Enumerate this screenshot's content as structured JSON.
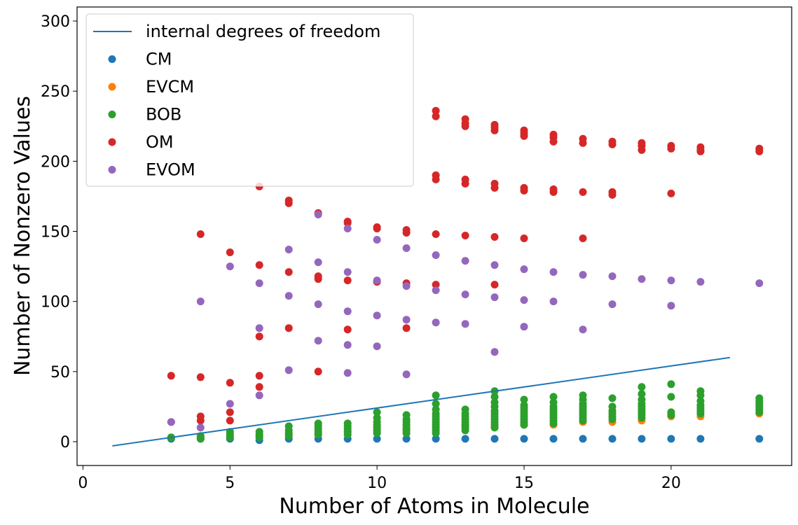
{
  "chart_data": {
    "type": "scatter",
    "xlabel": "Number of Atoms in Molecule",
    "ylabel": "Number of Nonzero Values",
    "xlim": [
      -0.2,
      24.1
    ],
    "ylim": [
      -17,
      310
    ],
    "xticks": [
      0,
      5,
      10,
      15,
      20
    ],
    "yticks": [
      0,
      50,
      100,
      150,
      200,
      250,
      300
    ],
    "grid": false,
    "legend": "top-left",
    "line": {
      "name": "internal degrees of freedom",
      "color": "#1f77b4",
      "x": [
        1,
        22
      ],
      "y": [
        -3,
        60
      ]
    },
    "series": [
      {
        "name": "CM",
        "color": "#1f77b4",
        "points": [
          [
            3,
            2
          ],
          [
            4,
            2
          ],
          [
            5,
            2
          ],
          [
            6,
            1
          ],
          [
            7,
            2
          ],
          [
            8,
            2
          ],
          [
            9,
            2
          ],
          [
            10,
            2
          ],
          [
            11,
            2
          ],
          [
            12,
            2
          ],
          [
            13,
            2
          ],
          [
            14,
            2
          ],
          [
            15,
            2
          ],
          [
            16,
            2
          ],
          [
            17,
            2
          ],
          [
            18,
            2
          ],
          [
            19,
            2
          ],
          [
            20,
            2
          ],
          [
            21,
            2
          ],
          [
            23,
            2
          ]
        ]
      },
      {
        "name": "EVCM",
        "color": "#ff7f0e",
        "points": [
          [
            3,
            3
          ],
          [
            4,
            3
          ],
          [
            5,
            4
          ],
          [
            6,
            4
          ],
          [
            7,
            5
          ],
          [
            8,
            6
          ],
          [
            9,
            7
          ],
          [
            10,
            8
          ],
          [
            11,
            9
          ],
          [
            12,
            10
          ],
          [
            13,
            11
          ],
          [
            14,
            11
          ],
          [
            15,
            12
          ],
          [
            16,
            12
          ],
          [
            17,
            14
          ],
          [
            18,
            14
          ],
          [
            19,
            15
          ],
          [
            20,
            18
          ],
          [
            21,
            18
          ],
          [
            23,
            20
          ]
        ]
      },
      {
        "name": "BOB",
        "color": "#2ca02c",
        "points": [
          [
            3,
            3
          ],
          [
            4,
            2
          ],
          [
            4,
            4
          ],
          [
            5,
            3
          ],
          [
            5,
            5
          ],
          [
            5,
            7
          ],
          [
            6,
            3
          ],
          [
            6,
            5
          ],
          [
            6,
            7
          ],
          [
            7,
            4
          ],
          [
            7,
            6
          ],
          [
            7,
            8
          ],
          [
            7,
            11
          ],
          [
            8,
            5
          ],
          [
            8,
            7
          ],
          [
            8,
            9
          ],
          [
            8,
            11
          ],
          [
            8,
            13
          ],
          [
            9,
            5
          ],
          [
            9,
            7
          ],
          [
            9,
            9
          ],
          [
            9,
            11
          ],
          [
            9,
            13
          ],
          [
            10,
            6
          ],
          [
            10,
            8
          ],
          [
            10,
            10
          ],
          [
            10,
            12
          ],
          [
            10,
            14
          ],
          [
            10,
            17
          ],
          [
            10,
            21
          ],
          [
            11,
            6
          ],
          [
            11,
            8
          ],
          [
            11,
            10
          ],
          [
            11,
            12
          ],
          [
            11,
            14
          ],
          [
            11,
            16
          ],
          [
            11,
            19
          ],
          [
            12,
            6
          ],
          [
            12,
            8
          ],
          [
            12,
            10
          ],
          [
            12,
            12
          ],
          [
            12,
            14
          ],
          [
            12,
            16
          ],
          [
            12,
            18
          ],
          [
            12,
            20
          ],
          [
            12,
            23
          ],
          [
            12,
            27
          ],
          [
            12,
            33
          ],
          [
            13,
            8
          ],
          [
            13,
            10
          ],
          [
            13,
            12
          ],
          [
            13,
            14
          ],
          [
            13,
            16
          ],
          [
            13,
            18
          ],
          [
            13,
            20
          ],
          [
            13,
            23
          ],
          [
            14,
            10
          ],
          [
            14,
            12
          ],
          [
            14,
            14
          ],
          [
            14,
            16
          ],
          [
            14,
            18
          ],
          [
            14,
            20
          ],
          [
            14,
            22
          ],
          [
            14,
            25
          ],
          [
            14,
            28
          ],
          [
            14,
            32
          ],
          [
            14,
            36
          ],
          [
            15,
            12
          ],
          [
            15,
            14
          ],
          [
            15,
            16
          ],
          [
            15,
            18
          ],
          [
            15,
            20
          ],
          [
            15,
            22
          ],
          [
            15,
            24
          ],
          [
            15,
            26
          ],
          [
            15,
            30
          ],
          [
            16,
            13
          ],
          [
            16,
            15
          ],
          [
            16,
            17
          ],
          [
            16,
            19
          ],
          [
            16,
            21
          ],
          [
            16,
            23
          ],
          [
            16,
            25
          ],
          [
            16,
            28
          ],
          [
            16,
            32
          ],
          [
            17,
            15
          ],
          [
            17,
            17
          ],
          [
            17,
            19
          ],
          [
            17,
            21
          ],
          [
            17,
            23
          ],
          [
            17,
            25
          ],
          [
            17,
            27
          ],
          [
            17,
            30
          ],
          [
            17,
            33
          ],
          [
            18,
            16
          ],
          [
            18,
            18
          ],
          [
            18,
            20
          ],
          [
            18,
            22
          ],
          [
            18,
            25
          ],
          [
            18,
            31
          ],
          [
            19,
            17
          ],
          [
            19,
            19
          ],
          [
            19,
            21
          ],
          [
            19,
            23
          ],
          [
            19,
            25
          ],
          [
            19,
            27
          ],
          [
            19,
            30
          ],
          [
            19,
            34
          ],
          [
            19,
            39
          ],
          [
            20,
            19
          ],
          [
            20,
            21
          ],
          [
            20,
            32
          ],
          [
            20,
            41
          ],
          [
            21,
            20
          ],
          [
            21,
            22
          ],
          [
            21,
            24
          ],
          [
            21,
            26
          ],
          [
            21,
            29
          ],
          [
            21,
            33
          ],
          [
            21,
            36
          ],
          [
            23,
            21
          ],
          [
            23,
            23
          ],
          [
            23,
            25
          ],
          [
            23,
            27
          ],
          [
            23,
            29
          ],
          [
            23,
            31
          ]
        ]
      },
      {
        "name": "OM",
        "color": "#d62728",
        "points": [
          [
            3,
            47
          ],
          [
            3,
            14
          ],
          [
            4,
            148
          ],
          [
            4,
            46
          ],
          [
            4,
            18
          ],
          [
            4,
            15
          ],
          [
            5,
            135
          ],
          [
            5,
            42
          ],
          [
            5,
            21
          ],
          [
            5,
            15
          ],
          [
            6,
            182
          ],
          [
            6,
            126
          ],
          [
            6,
            75
          ],
          [
            6,
            47
          ],
          [
            6,
            39
          ],
          [
            7,
            172
          ],
          [
            7,
            170
          ],
          [
            7,
            121
          ],
          [
            7,
            81
          ],
          [
            8,
            163
          ],
          [
            8,
            118
          ],
          [
            8,
            116
          ],
          [
            8,
            50
          ],
          [
            9,
            157
          ],
          [
            9,
            156
          ],
          [
            9,
            115
          ],
          [
            9,
            80
          ],
          [
            10,
            153
          ],
          [
            10,
            152
          ],
          [
            10,
            114
          ],
          [
            11,
            151
          ],
          [
            11,
            149
          ],
          [
            11,
            113
          ],
          [
            11,
            81
          ],
          [
            12,
            236
          ],
          [
            12,
            232
          ],
          [
            12,
            190
          ],
          [
            12,
            187
          ],
          [
            12,
            148
          ],
          [
            12,
            112
          ],
          [
            13,
            230
          ],
          [
            13,
            227
          ],
          [
            13,
            225
          ],
          [
            13,
            187
          ],
          [
            13,
            184
          ],
          [
            13,
            147
          ],
          [
            14,
            226
          ],
          [
            14,
            224
          ],
          [
            14,
            222
          ],
          [
            14,
            184
          ],
          [
            14,
            181
          ],
          [
            14,
            146
          ],
          [
            14,
            112
          ],
          [
            15,
            222
          ],
          [
            15,
            220
          ],
          [
            15,
            218
          ],
          [
            15,
            181
          ],
          [
            15,
            179
          ],
          [
            15,
            145
          ],
          [
            16,
            219
          ],
          [
            16,
            217
          ],
          [
            16,
            214
          ],
          [
            16,
            180
          ],
          [
            16,
            178
          ],
          [
            17,
            216
          ],
          [
            17,
            213
          ],
          [
            17,
            178
          ],
          [
            17,
            145
          ],
          [
            18,
            214
          ],
          [
            18,
            212
          ],
          [
            18,
            178
          ],
          [
            18,
            176
          ],
          [
            19,
            213
          ],
          [
            19,
            211
          ],
          [
            19,
            208
          ],
          [
            20,
            211
          ],
          [
            20,
            209
          ],
          [
            20,
            177
          ],
          [
            21,
            210
          ],
          [
            21,
            208
          ],
          [
            21,
            207
          ],
          [
            23,
            209
          ],
          [
            23,
            207
          ]
        ]
      },
      {
        "name": "EVOM",
        "color": "#9467bd",
        "points": [
          [
            3,
            14
          ],
          [
            4,
            100
          ],
          [
            4,
            10
          ],
          [
            5,
            125
          ],
          [
            5,
            27
          ],
          [
            6,
            113
          ],
          [
            6,
            81
          ],
          [
            6,
            33
          ],
          [
            7,
            137
          ],
          [
            7,
            104
          ],
          [
            7,
            51
          ],
          [
            8,
            162
          ],
          [
            8,
            128
          ],
          [
            8,
            98
          ],
          [
            8,
            72
          ],
          [
            9,
            152
          ],
          [
            9,
            121
          ],
          [
            9,
            93
          ],
          [
            9,
            69
          ],
          [
            9,
            49
          ],
          [
            10,
            144
          ],
          [
            10,
            115
          ],
          [
            10,
            90
          ],
          [
            10,
            68
          ],
          [
            11,
            138
          ],
          [
            11,
            111
          ],
          [
            11,
            87
          ],
          [
            11,
            48
          ],
          [
            12,
            133
          ],
          [
            12,
            108
          ],
          [
            12,
            85
          ],
          [
            13,
            129
          ],
          [
            13,
            105
          ],
          [
            13,
            84
          ],
          [
            14,
            126
          ],
          [
            14,
            103
          ],
          [
            14,
            64
          ],
          [
            15,
            123
          ],
          [
            15,
            101
          ],
          [
            15,
            82
          ],
          [
            16,
            121
          ],
          [
            16,
            100
          ],
          [
            17,
            119
          ],
          [
            17,
            80
          ],
          [
            18,
            118
          ],
          [
            18,
            98
          ],
          [
            19,
            116
          ],
          [
            20,
            115
          ],
          [
            20,
            97
          ],
          [
            21,
            114
          ],
          [
            23,
            113
          ]
        ]
      }
    ]
  }
}
